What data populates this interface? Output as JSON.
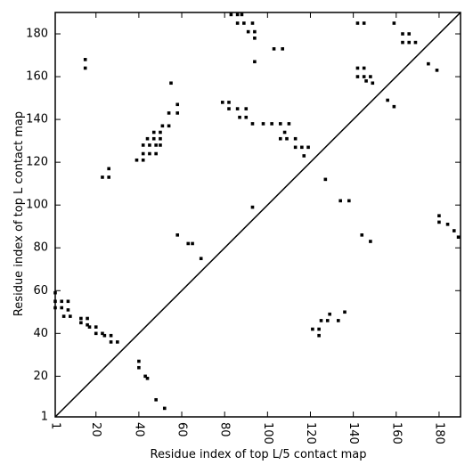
{
  "chart_data": {
    "type": "scatter",
    "xlabel": "Residue index of top L/5 contact map",
    "ylabel": "Residue index of top L contact map",
    "xlim": [
      1,
      190
    ],
    "ylim": [
      1,
      190
    ],
    "xticks": [
      1,
      20,
      40,
      60,
      80,
      100,
      120,
      140,
      160,
      180
    ],
    "yticks": [
      1,
      20,
      40,
      60,
      80,
      100,
      120,
      140,
      160,
      180
    ],
    "color": "#000000",
    "x": [
      1,
      1,
      1,
      4,
      7,
      4,
      7,
      5,
      8,
      13,
      13,
      16,
      16,
      17,
      20,
      20,
      23,
      24,
      27,
      27,
      30,
      15,
      15,
      23,
      26,
      26,
      39,
      42,
      42,
      45,
      48,
      42,
      45,
      48,
      50,
      44,
      47,
      50,
      47,
      50,
      51,
      54,
      54,
      58,
      58,
      55,
      58,
      63,
      65,
      69,
      40,
      40,
      43,
      44,
      48,
      52,
      79,
      82,
      82,
      86,
      83,
      86,
      88,
      86,
      89,
      93,
      91,
      94,
      94,
      94,
      87,
      90,
      90,
      93,
      98,
      102,
      106,
      108,
      110,
      103,
      107,
      106,
      109,
      113,
      113,
      116,
      119,
      117,
      93,
      127,
      134,
      138,
      144,
      148,
      121,
      124,
      124,
      125,
      128,
      129,
      133,
      136,
      142,
      145,
      159,
      142,
      145,
      142,
      145,
      148,
      146,
      149,
      156,
      159,
      163,
      166,
      163,
      166,
      169,
      175,
      179,
      180,
      180,
      184,
      187,
      189
    ],
    "y": [
      59,
      55,
      52,
      55,
      55,
      52,
      51,
      48,
      48,
      47,
      45,
      47,
      44,
      43,
      43,
      40,
      40,
      39,
      39,
      36,
      36,
      168,
      164,
      113,
      113,
      117,
      121,
      121,
      124,
      124,
      124,
      128,
      128,
      128,
      128,
      131,
      131,
      131,
      134,
      134,
      137,
      137,
      143,
      143,
      147,
      157,
      86,
      82,
      82,
      75,
      27,
      24,
      20,
      19,
      9,
      5,
      148,
      148,
      145,
      145,
      189,
      189,
      189,
      185,
      185,
      185,
      181,
      181,
      178,
      167,
      141,
      141,
      145,
      138,
      138,
      138,
      138,
      134,
      138,
      173,
      173,
      131,
      131,
      131,
      127,
      127,
      127,
      123,
      99,
      112,
      102,
      102,
      86,
      83,
      42,
      42,
      39,
      46,
      46,
      49,
      46,
      50,
      185,
      185,
      185,
      164,
      164,
      160,
      160,
      160,
      158,
      157,
      149,
      146,
      180,
      180,
      176,
      176,
      176,
      166,
      163,
      95,
      92,
      91,
      88,
      85
    ]
  }
}
